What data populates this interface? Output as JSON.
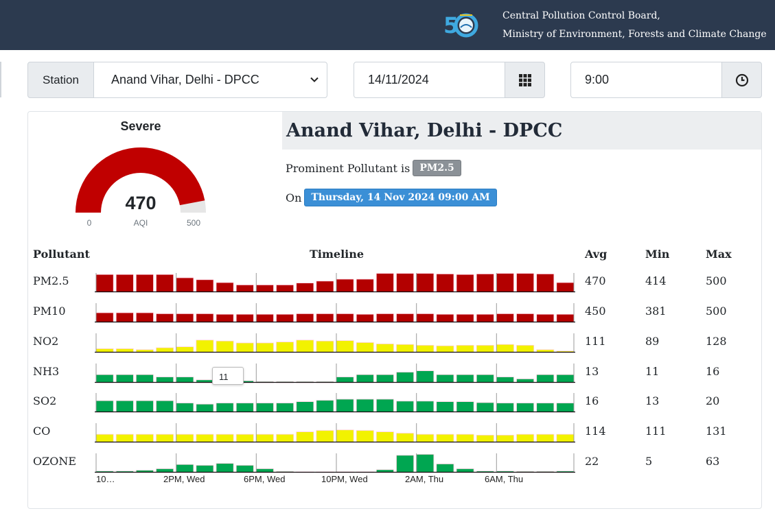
{
  "header": {
    "org_line1": "Central Pollution Control Board,",
    "org_line2": "Ministry of Environment, Forests and Climate Change",
    "logo_text": "50"
  },
  "controls": {
    "station_label": "Station",
    "station_value": "Anand Vihar, Delhi - DPCC",
    "date_value": "14/11/2024",
    "time_value": "9:00",
    "calendar_icon": "grid-calendar-icon",
    "clock_icon": "clock-icon"
  },
  "gauge": {
    "category": "Severe",
    "value": "470",
    "label": "AQI",
    "min": "0",
    "max": "500",
    "fill_fraction": 0.94,
    "color": "#c00000"
  },
  "station_info": {
    "title": "Anand Vihar, Delhi - DPCC",
    "prominent_text": "Prominent Pollutant is",
    "prominent_value": "PM2.5",
    "on_text": "On",
    "timestamp": "Thursday, 14 Nov 2024 09:00 AM"
  },
  "table": {
    "headers": {
      "pollutant": "Pollutant",
      "timeline": "Timeline",
      "avg": "Avg",
      "min": "Min",
      "max": "Max"
    },
    "rows": [
      {
        "name": "PM2.5",
        "avg": "470",
        "min": "414",
        "max": "500",
        "color": "#b30000",
        "values": [
          0.92,
          0.92,
          0.92,
          0.92,
          0.75,
          0.65,
          0.5,
          0.38,
          0.38,
          0.38,
          0.48,
          0.58,
          0.68,
          0.68,
          0.98,
          0.98,
          0.98,
          0.95,
          0.92,
          0.95,
          0.98,
          0.98,
          0.95,
          0.5
        ]
      },
      {
        "name": "PM10",
        "avg": "450",
        "min": "381",
        "max": "500",
        "color": "#b30000",
        "values": [
          0.5,
          0.5,
          0.5,
          0.45,
          0.45,
          0.45,
          0.42,
          0.42,
          0.42,
          0.42,
          0.45,
          0.45,
          0.45,
          0.42,
          0.45,
          0.45,
          0.45,
          0.42,
          0.42,
          0.42,
          0.45,
          0.45,
          0.42,
          0.42
        ]
      },
      {
        "name": "NO2",
        "avg": "111",
        "min": "89",
        "max": "128",
        "color": "#f2f200",
        "values": [
          0.2,
          0.2,
          0.15,
          0.25,
          0.3,
          0.65,
          0.6,
          0.5,
          0.5,
          0.55,
          0.65,
          0.6,
          0.62,
          0.52,
          0.45,
          0.42,
          0.38,
          0.35,
          0.38,
          0.38,
          0.42,
          0.38,
          0.15,
          0.08
        ]
      },
      {
        "name": "NH3",
        "avg": "13",
        "min": "11",
        "max": "16",
        "color": "#00a651",
        "values": [
          0.42,
          0.42,
          0.42,
          0.3,
          0.3,
          0.15,
          0.1,
          0.1,
          0.06,
          0.06,
          0.06,
          0.06,
          0.3,
          0.42,
          0.42,
          0.55,
          0.62,
          0.42,
          0.42,
          0.42,
          0.3,
          0.2,
          0.42,
          0.42
        ]
      },
      {
        "name": "SO2",
        "avg": "16",
        "min": "13",
        "max": "20",
        "color": "#00a651",
        "values": [
          0.6,
          0.6,
          0.6,
          0.6,
          0.48,
          0.42,
          0.48,
          0.48,
          0.48,
          0.48,
          0.55,
          0.62,
          0.68,
          0.68,
          0.68,
          0.58,
          0.58,
          0.55,
          0.55,
          0.5,
          0.48,
          0.48,
          0.48,
          0.48
        ]
      },
      {
        "name": "CO",
        "avg": "114",
        "min": "111",
        "max": "131",
        "color": "#f2f200",
        "values": [
          0.42,
          0.42,
          0.42,
          0.42,
          0.42,
          0.42,
          0.42,
          0.42,
          0.42,
          0.42,
          0.55,
          0.62,
          0.65,
          0.62,
          0.55,
          0.48,
          0.42,
          0.42,
          0.42,
          0.38,
          0.38,
          0.42,
          0.42,
          0.42
        ]
      },
      {
        "name": "OZONE",
        "avg": "22",
        "min": "5",
        "max": "63",
        "color": "#00a651",
        "values": [
          0.08,
          0.08,
          0.12,
          0.2,
          0.42,
          0.38,
          0.48,
          0.38,
          0.2,
          0.06,
          0.04,
          0.04,
          0.04,
          0.04,
          0.15,
          0.9,
          0.95,
          0.45,
          0.2,
          0.08,
          0.08,
          0.06,
          0.06,
          0.08
        ]
      }
    ],
    "tick_labels": [
      "10…",
      "2PM, Wed",
      "6PM, Wed",
      "10PM, Wed",
      "2AM, Thu",
      "6AM, Thu"
    ],
    "tooltip_value": "11"
  }
}
